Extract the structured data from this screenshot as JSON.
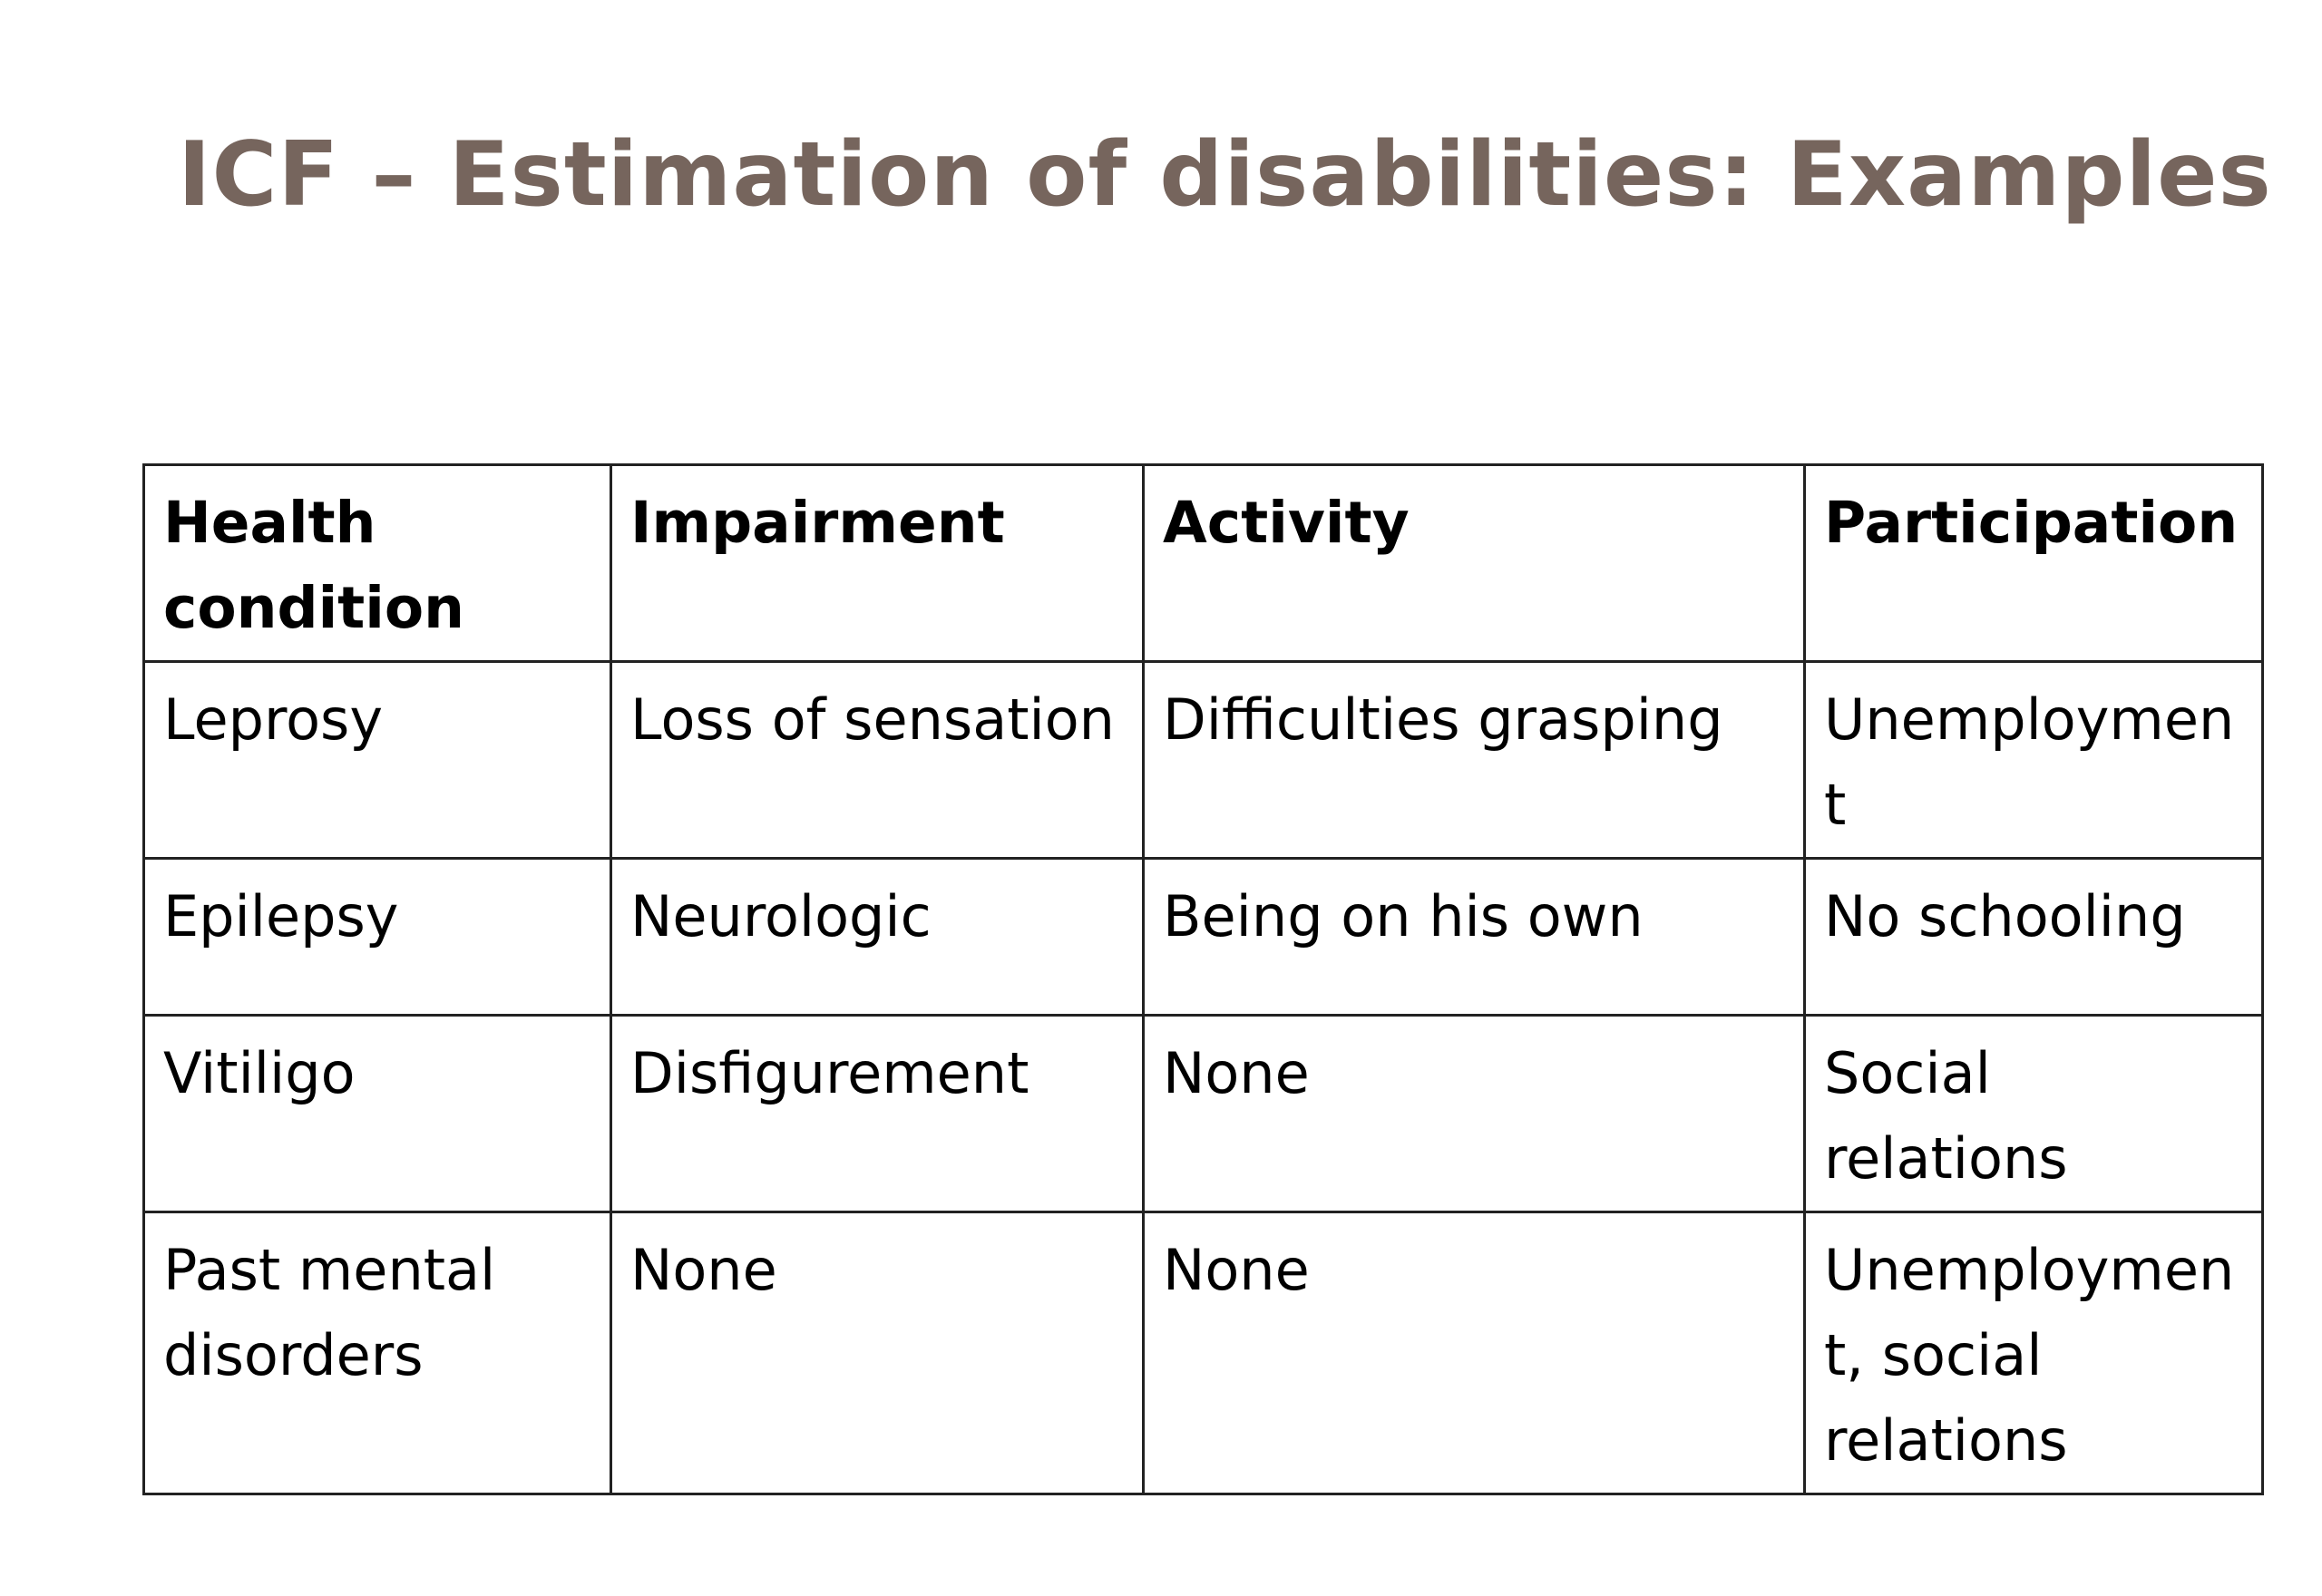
{
  "slide": {
    "title": "ICF – Estimation of disabilities: Examples"
  },
  "table": {
    "headers": [
      "Health condition",
      "Impairment",
      "Activity",
      "Participation"
    ],
    "rows": [
      [
        "Leprosy",
        "Loss of sensation",
        "Difficulties grasping",
        "Unemployment"
      ],
      [
        "Epilepsy",
        "Neurologic",
        "Being on his own",
        "No schooling"
      ],
      [
        "Vitiligo",
        "Disfigurement",
        "None",
        "Social relations"
      ],
      [
        "Past mental disorders",
        "None",
        "None",
        "Unemployment, social relations"
      ]
    ]
  },
  "colors": {
    "title": "#76655d",
    "text": "#000000",
    "border": "#222222",
    "background": "#ffffff"
  }
}
